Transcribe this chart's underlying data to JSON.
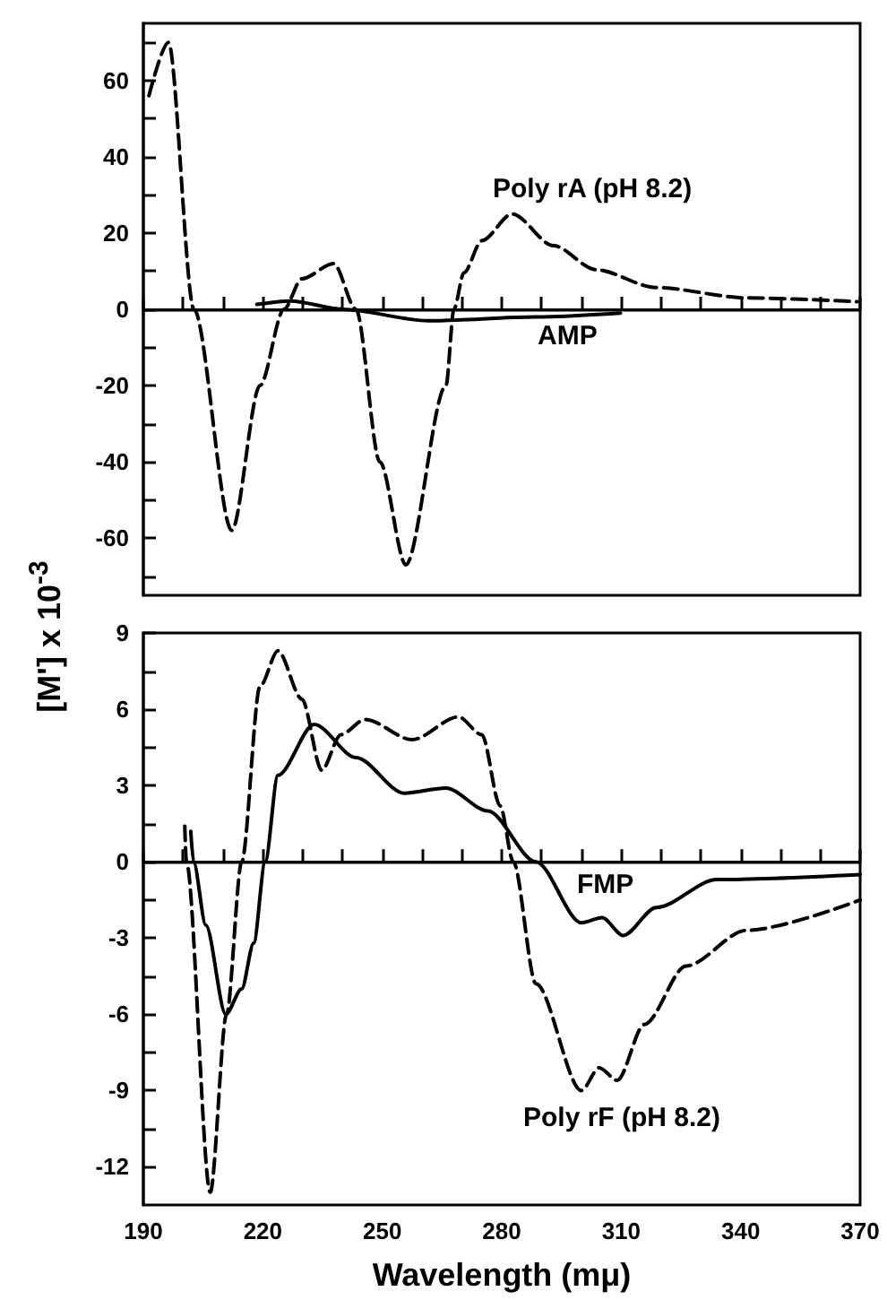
{
  "chart_data": [
    {
      "type": "line",
      "xlim": [
        190,
        370
      ],
      "xticks": [
        190,
        {
          "value": 200,
          "label": null
        },
        {
          "value": 210,
          "label": null
        },
        220,
        {
          "value": 230,
          "label": null
        },
        {
          "value": 240,
          "label": null
        },
        250,
        {
          "value": 260,
          "label": null
        },
        {
          "value": 270,
          "label": null
        },
        280,
        {
          "value": 290,
          "label": null
        },
        {
          "value": 300,
          "label": null
        },
        310,
        {
          "value": 320,
          "label": null
        },
        {
          "value": 330,
          "label": null
        },
        340,
        {
          "value": 350,
          "label": null
        },
        {
          "value": 360,
          "label": null
        },
        370
      ],
      "ylim": [
        -75,
        75
      ],
      "yticks": [
        {
          "value": -70,
          "label": null
        },
        -60,
        {
          "value": -50,
          "label": null
        },
        -40,
        {
          "value": -30,
          "label": null
        },
        -20,
        {
          "value": -10,
          "label": null
        },
        0,
        {
          "value": 10,
          "label": null
        },
        20,
        {
          "value": 30,
          "label": null
        },
        40,
        {
          "value": 50,
          "label": null
        },
        60,
        {
          "value": 70,
          "label": null
        }
      ],
      "tick_labels": "y",
      "grid": false,
      "marker": "none",
      "ref_lines": [
        {
          "axis": "y",
          "value": 0,
          "color": "#000000"
        }
      ],
      "annotations": [
        "Poly rA (pH 8.2)",
        "AMP"
      ],
      "series": [
        {
          "color": "#000000",
          "line_style": "dashed",
          "x": [
            191.4,
            196.3,
            202.7,
            212.2,
            219.3,
            225.3,
            229.8,
            237.8,
            243.4,
            249.4,
            255.9,
            266,
            268,
            270.5,
            275,
            282.6,
            293,
            303.6,
            318.8,
            341.5,
            369.3
          ],
          "values": [
            56,
            70,
            0,
            -58,
            -20,
            0,
            8,
            12,
            0,
            -40,
            -67,
            -20,
            0,
            9.6,
            18,
            25,
            16.7,
            10.4,
            5.7,
            3,
            2
          ]
        },
        {
          "color": "#000000",
          "line_style": "solid",
          "x": [
            218.5,
            227,
            240,
            261.5,
            288.6,
            309.8
          ],
          "values": [
            1.3,
            2.2,
            0,
            -3,
            -2,
            -1
          ]
        }
      ]
    },
    {
      "type": "line",
      "xlabel": "Wavelength (mμ)",
      "ylabel": "[M'] x 10$^{-3}$",
      "xlim": [
        190,
        370
      ],
      "xticks": [
        190,
        {
          "value": 200,
          "label": null
        },
        {
          "value": 210,
          "label": null
        },
        220,
        {
          "value": 230,
          "label": null
        },
        {
          "value": 240,
          "label": null
        },
        250,
        {
          "value": 260,
          "label": null
        },
        {
          "value": 270,
          "label": null
        },
        280,
        {
          "value": 290,
          "label": null
        },
        {
          "value": 300,
          "label": null
        },
        310,
        {
          "value": 320,
          "label": null
        },
        {
          "value": 330,
          "label": null
        },
        340,
        {
          "value": 350,
          "label": null
        },
        {
          "value": 360,
          "label": null
        },
        370
      ],
      "ylim": [
        -13.5,
        9
      ],
      "yticks": [
        -12,
        {
          "value": -10.5,
          "label": null
        },
        -9,
        {
          "value": -7.5,
          "label": null
        },
        -6,
        {
          "value": -4.5,
          "label": null
        },
        -3,
        {
          "value": -1.5,
          "label": null
        },
        0,
        {
          "value": 1.5,
          "label": null
        },
        3,
        {
          "value": 4.5,
          "label": null
        },
        6,
        {
          "value": 7.5,
          "label": null
        },
        9
      ],
      "grid": false,
      "marker": "none",
      "ref_lines": [
        {
          "axis": "y",
          "value": 0,
          "color": "#000000"
        }
      ],
      "annotations": [
        "FMP",
        "Poly rF (pH 8.2)"
      ],
      "series": [
        {
          "color": "#000000",
          "line_style": "dashed",
          "x": [
            200.4,
            200.8,
            206.8,
            210.9,
            214.7,
            219.3,
            223.8,
            229.8,
            234.8,
            239.6,
            245.7,
            257.5,
            269.1,
            275,
            279.6,
            282.9,
            288.6,
            300,
            304.5,
            309,
            315.8,
            326.3,
            341.4,
            370
          ],
          "values": [
            1.4,
            0,
            -13,
            -6,
            0,
            6.9,
            8.3,
            6.4,
            3.6,
            5,
            5.6,
            4.8,
            5.7,
            5,
            2.2,
            0,
            -4.8,
            -9,
            -8.1,
            -8.6,
            -6.4,
            -4.1,
            -2.7,
            -1.5
          ]
        },
        {
          "color": "#000000",
          "line_style": "solid",
          "x": [
            201.9,
            202.6,
            205.7,
            210.7,
            214.7,
            217.7,
            220.6,
            223.8,
            232.9,
            243.4,
            255.5,
            266,
            276.5,
            288.6,
            300,
            305.2,
            310.5,
            318.8,
            334,
            370
          ],
          "values": [
            1.2,
            0,
            -2.5,
            -6,
            -5,
            -3.2,
            0,
            3.4,
            5.4,
            4.1,
            2.7,
            2.9,
            2,
            0,
            -2.4,
            -2.2,
            -2.9,
            -1.8,
            -0.7,
            -0.5
          ]
        }
      ]
    }
  ]
}
